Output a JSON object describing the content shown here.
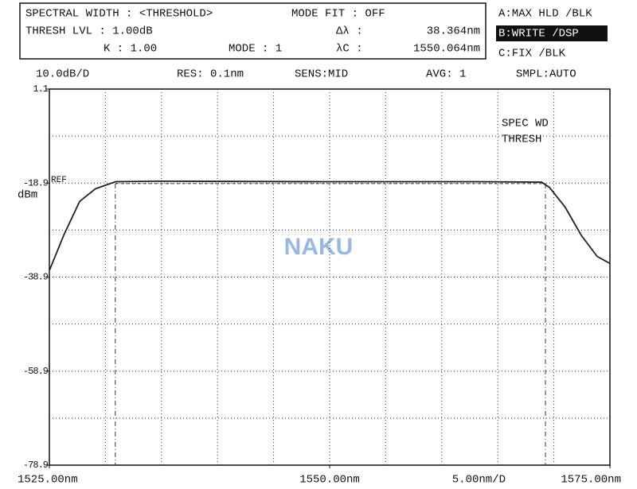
{
  "header": {
    "title": "SPECTRAL WIDTH : <THRESHOLD>",
    "mode_fit": "MODE FIT : OFF",
    "thresh_lvl": "THRESH LVL :  1.00dB",
    "delta_label": "Δλ :",
    "delta_value": "38.364nm",
    "k": "K :  1.00",
    "mode": "MODE : 1",
    "center_label": "λC :",
    "center_value": "1550.064nm",
    "traces": [
      "A:MAX HLD /BLK",
      "B:WRITE /DSP",
      "C:FIX /BLK"
    ]
  },
  "status": [
    "10.0dB/D",
    "RES: 0.1nm",
    "SENS:MID",
    "AVG:  1",
    "SMPL:AUTO"
  ],
  "chart_data": {
    "type": "line",
    "color": "#222222",
    "x": [
      1525,
      1526.28,
      1527.7,
      1529.12,
      1530.9,
      1534.8,
      1549.0,
      1563.2,
      1568.9,
      1569.6,
      1571.0,
      1572.44,
      1573.86,
      1575
    ],
    "values": [
      -37.5,
      -30.0,
      -22.8,
      -20.1,
      -18.6,
      -18.5,
      -18.6,
      -18.6,
      -18.7,
      -19.8,
      -24.0,
      -30.0,
      -34.5,
      -36.0
    ],
    "xlim": [
      1525,
      1575
    ],
    "xticks": [
      {
        "value": 1525,
        "label": "1525.00nm"
      },
      {
        "value": 1550,
        "label": "1550.00nm"
      },
      {
        "value": 1575,
        "label": "1575.00nm"
      }
    ],
    "xgrid": [
      1530,
      1535,
      1540,
      1545,
      1550,
      1555,
      1560,
      1565,
      1570
    ],
    "ylim": [
      -78.9,
      1.1
    ],
    "yticks": [
      1.1,
      -18.9,
      -38.9,
      -58.9,
      -78.9
    ],
    "ygrid": [
      -8.9,
      -18.9,
      -28.9,
      -38.9,
      -48.9,
      -58.9,
      -68.9
    ],
    "grid": true,
    "threshold_x": [
      1530.88,
      1569.25
    ],
    "threshold_y": -19.0,
    "ref_label": "REF",
    "y_unit": "dBm",
    "x_scale": "5.00nm/D",
    "annotations": [
      "SPEC WD",
      "THRESH"
    ],
    "watermark": "NAKU"
  }
}
